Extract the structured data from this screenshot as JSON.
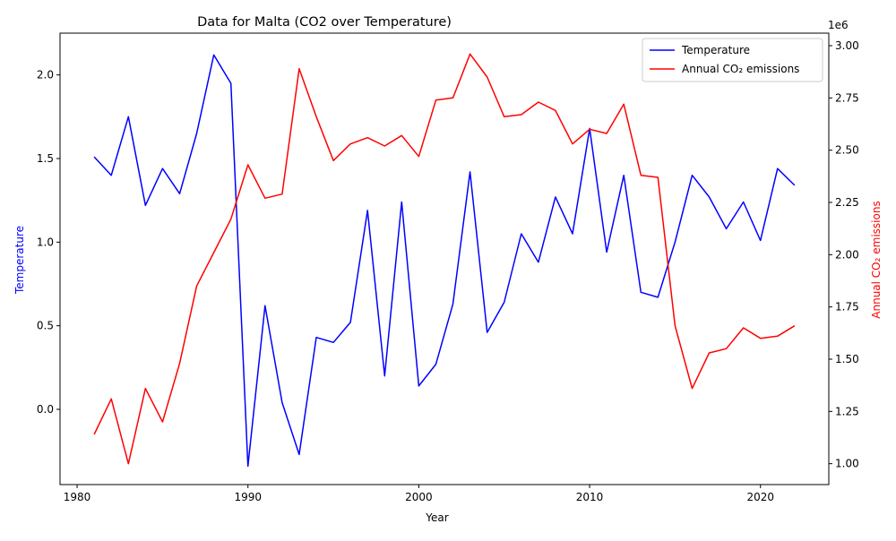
{
  "chart_data": {
    "type": "line",
    "title": "Data for Malta (CO2 over Temperature)",
    "xlabel": "Year",
    "ylabel_left": "Temperature",
    "ylabel_right": "Annual CO₂ emissions",
    "right_axis_multiplier": "1e6",
    "xlim": [
      1979,
      2024
    ],
    "ylim_left": [
      -0.45,
      2.25
    ],
    "ylim_right": [
      0.9,
      3.06
    ],
    "x_ticks": [
      1980,
      1990,
      2000,
      2010,
      2020
    ],
    "y_ticks_left": [
      0.0,
      0.5,
      1.0,
      1.5,
      2.0
    ],
    "y_tick_labels_left": [
      "0.0",
      "0.5",
      "1.0",
      "1.5",
      "2.0"
    ],
    "y_ticks_right": [
      1.0,
      1.25,
      1.5,
      1.75,
      2.0,
      2.25,
      2.5,
      2.75,
      3.0
    ],
    "y_tick_labels_right": [
      "1.00",
      "1.25",
      "1.50",
      "1.75",
      "2.00",
      "2.25",
      "2.50",
      "2.75",
      "3.00"
    ],
    "legend_position": "upper right",
    "grid": false,
    "x": [
      1981,
      1982,
      1983,
      1984,
      1985,
      1986,
      1987,
      1988,
      1989,
      1990,
      1991,
      1992,
      1993,
      1994,
      1995,
      1996,
      1997,
      1998,
      1999,
      2000,
      2001,
      2002,
      2003,
      2004,
      2005,
      2006,
      2007,
      2008,
      2009,
      2010,
      2011,
      2012,
      2013,
      2014,
      2015,
      2016,
      2017,
      2018,
      2019,
      2020,
      2021,
      2022
    ],
    "series": [
      {
        "name": "Temperature",
        "axis": "left",
        "color": "#0000ff",
        "values": [
          1.51,
          1.4,
          1.75,
          1.22,
          1.44,
          1.29,
          1.65,
          2.12,
          1.95,
          -0.34,
          0.62,
          0.04,
          -0.27,
          0.43,
          0.4,
          0.52,
          1.19,
          0.2,
          1.24,
          0.14,
          0.27,
          0.63,
          1.42,
          0.46,
          0.64,
          1.05,
          0.88,
          1.27,
          1.05,
          1.68,
          0.94,
          1.4,
          0.7,
          0.67,
          1.0,
          1.4,
          1.27,
          1.08,
          1.24,
          1.01,
          1.44,
          1.34
        ]
      },
      {
        "name": "Annual CO₂ emissions",
        "axis": "right",
        "color": "#ff0000",
        "values": [
          1.14,
          1.31,
          1.0,
          1.36,
          1.2,
          1.48,
          1.85,
          2.01,
          2.17,
          2.43,
          2.27,
          2.29,
          2.89,
          2.66,
          2.45,
          2.53,
          2.56,
          2.52,
          2.57,
          2.47,
          2.74,
          2.75,
          2.96,
          2.85,
          2.66,
          2.67,
          2.73,
          2.69,
          2.53,
          2.6,
          2.58,
          2.72,
          2.38,
          2.37,
          1.66,
          1.36,
          1.53,
          1.55,
          1.65,
          1.6,
          1.61,
          1.66
        ]
      }
    ]
  }
}
